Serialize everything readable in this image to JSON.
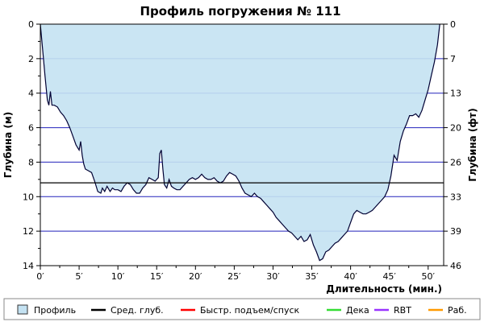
{
  "chart_data": {
    "type": "area",
    "title": "Профиль погружения № 111",
    "xlabel": "Длительность (мин.)",
    "ylabel_left": "Глубина (м)",
    "ylabel_right": "Глубина (фт)",
    "xlim": [
      0,
      52
    ],
    "ylim": [
      0,
      14
    ],
    "y_inverted": true,
    "x_ticks": [
      0,
      5,
      10,
      15,
      20,
      25,
      30,
      35,
      40,
      45,
      50
    ],
    "x_tick_labels": [
      "0′",
      "5′",
      "10′",
      "15′",
      "20′",
      "25′",
      "30′",
      "35′",
      "40′",
      "45′",
      "50′"
    ],
    "y_ticks_left": [
      0,
      2,
      4,
      6,
      8,
      10,
      12,
      14
    ],
    "y_tick_labels_left": [
      "0",
      "2",
      "4",
      "6",
      "8",
      "10",
      "12",
      "14"
    ],
    "y_ticks_right_depth_m": [
      0,
      2,
      4,
      6,
      8,
      10,
      12,
      14
    ],
    "y_tick_labels_right": [
      "0",
      "7",
      "13",
      "20",
      "26",
      "33",
      "39",
      "46"
    ],
    "avg_depth": 9.2,
    "colors": {
      "profile_fill": "#c4e2f2",
      "profile_line": "#000033",
      "grid": "#2222bb",
      "avg_line": "#000000"
    },
    "series": [
      {
        "name": "Профиль",
        "x": [
          0,
          0.3,
          0.6,
          0.9,
          1.1,
          1.3,
          1.5,
          1.8,
          2.2,
          2.6,
          3.0,
          3.4,
          3.8,
          4.2,
          4.6,
          5.0,
          5.2,
          5.4,
          5.6,
          5.8,
          6.2,
          6.6,
          7.0,
          7.4,
          7.8,
          8.0,
          8.3,
          8.6,
          9.0,
          9.3,
          9.6,
          10.0,
          10.4,
          10.8,
          11.2,
          11.6,
          12.0,
          12.4,
          12.8,
          13.2,
          13.6,
          14.0,
          14.4,
          14.8,
          15.0,
          15.2,
          15.4,
          15.6,
          15.8,
          16.0,
          16.3,
          16.6,
          16.9,
          17.2,
          17.6,
          18.0,
          18.4,
          18.8,
          19.2,
          19.6,
          20.0,
          20.4,
          20.8,
          21.2,
          21.6,
          22.0,
          22.4,
          22.8,
          23.2,
          23.6,
          24.0,
          24.4,
          24.8,
          25.2,
          25.6,
          26.0,
          26.4,
          26.8,
          27.2,
          27.6,
          28.0,
          28.4,
          28.8,
          29.2,
          29.6,
          30.0,
          30.4,
          30.8,
          31.2,
          31.6,
          32.0,
          32.4,
          32.8,
          33.2,
          33.6,
          34.0,
          34.4,
          34.8,
          35.2,
          35.6,
          36.0,
          36.4,
          36.8,
          37.2,
          37.6,
          38.0,
          38.4,
          38.8,
          39.2,
          39.6,
          40.0,
          40.4,
          40.8,
          41.2,
          41.6,
          42.0,
          42.4,
          42.8,
          43.2,
          43.6,
          44.0,
          44.4,
          44.8,
          45.2,
          45.6,
          46.0,
          46.4,
          46.8,
          47.2,
          47.6,
          48.0,
          48.4,
          48.8,
          49.2,
          49.6,
          50.0,
          50.4,
          50.8,
          51.2,
          51.5
        ],
        "y": [
          0,
          1.5,
          3.0,
          4.4,
          4.7,
          3.9,
          4.7,
          4.7,
          4.8,
          5.1,
          5.3,
          5.6,
          6.0,
          6.5,
          7.0,
          7.3,
          6.8,
          7.6,
          8.1,
          8.4,
          8.5,
          8.6,
          9.1,
          9.7,
          9.8,
          9.5,
          9.7,
          9.4,
          9.7,
          9.5,
          9.6,
          9.6,
          9.7,
          9.4,
          9.2,
          9.3,
          9.6,
          9.8,
          9.8,
          9.5,
          9.3,
          8.9,
          9.0,
          9.1,
          9.0,
          8.9,
          7.5,
          7.3,
          8.4,
          9.3,
          9.5,
          9.0,
          9.4,
          9.5,
          9.6,
          9.6,
          9.4,
          9.2,
          9.0,
          8.9,
          9.0,
          8.9,
          8.7,
          8.9,
          9.0,
          9.0,
          8.9,
          9.1,
          9.2,
          9.1,
          8.8,
          8.6,
          8.7,
          8.8,
          9.1,
          9.5,
          9.8,
          9.9,
          10.0,
          9.8,
          10.0,
          10.1,
          10.3,
          10.5,
          10.7,
          10.9,
          11.2,
          11.4,
          11.6,
          11.8,
          12.0,
          12.1,
          12.3,
          12.5,
          12.3,
          12.6,
          12.5,
          12.2,
          12.8,
          13.2,
          13.7,
          13.6,
          13.2,
          13.1,
          12.9,
          12.7,
          12.6,
          12.4,
          12.2,
          12.0,
          11.5,
          11.0,
          10.8,
          10.9,
          11.0,
          11.0,
          10.9,
          10.8,
          10.6,
          10.4,
          10.2,
          10.0,
          9.6,
          8.8,
          7.6,
          7.9,
          6.8,
          6.2,
          5.8,
          5.3,
          5.3,
          5.2,
          5.4,
          5.0,
          4.4,
          3.8,
          3.0,
          2.2,
          1.2,
          0
        ]
      },
      {
        "name": "Сред. глуб."
      }
    ],
    "legend": {
      "placement": "bottom",
      "items": [
        {
          "label": "Профиль",
          "kind": "box",
          "color": "#c4e2f2"
        },
        {
          "label": "Сред. глуб.",
          "kind": "line",
          "color": "#000000"
        },
        {
          "label": "Быстр. подъем/спуск",
          "kind": "line",
          "color": "#ff0000"
        },
        {
          "label": "Дека",
          "kind": "line",
          "color": "#33dd33"
        },
        {
          "label": "RBT",
          "kind": "line",
          "color": "#9933ff"
        },
        {
          "label": "Раб.",
          "kind": "line",
          "color": "#ff9900"
        }
      ]
    }
  }
}
